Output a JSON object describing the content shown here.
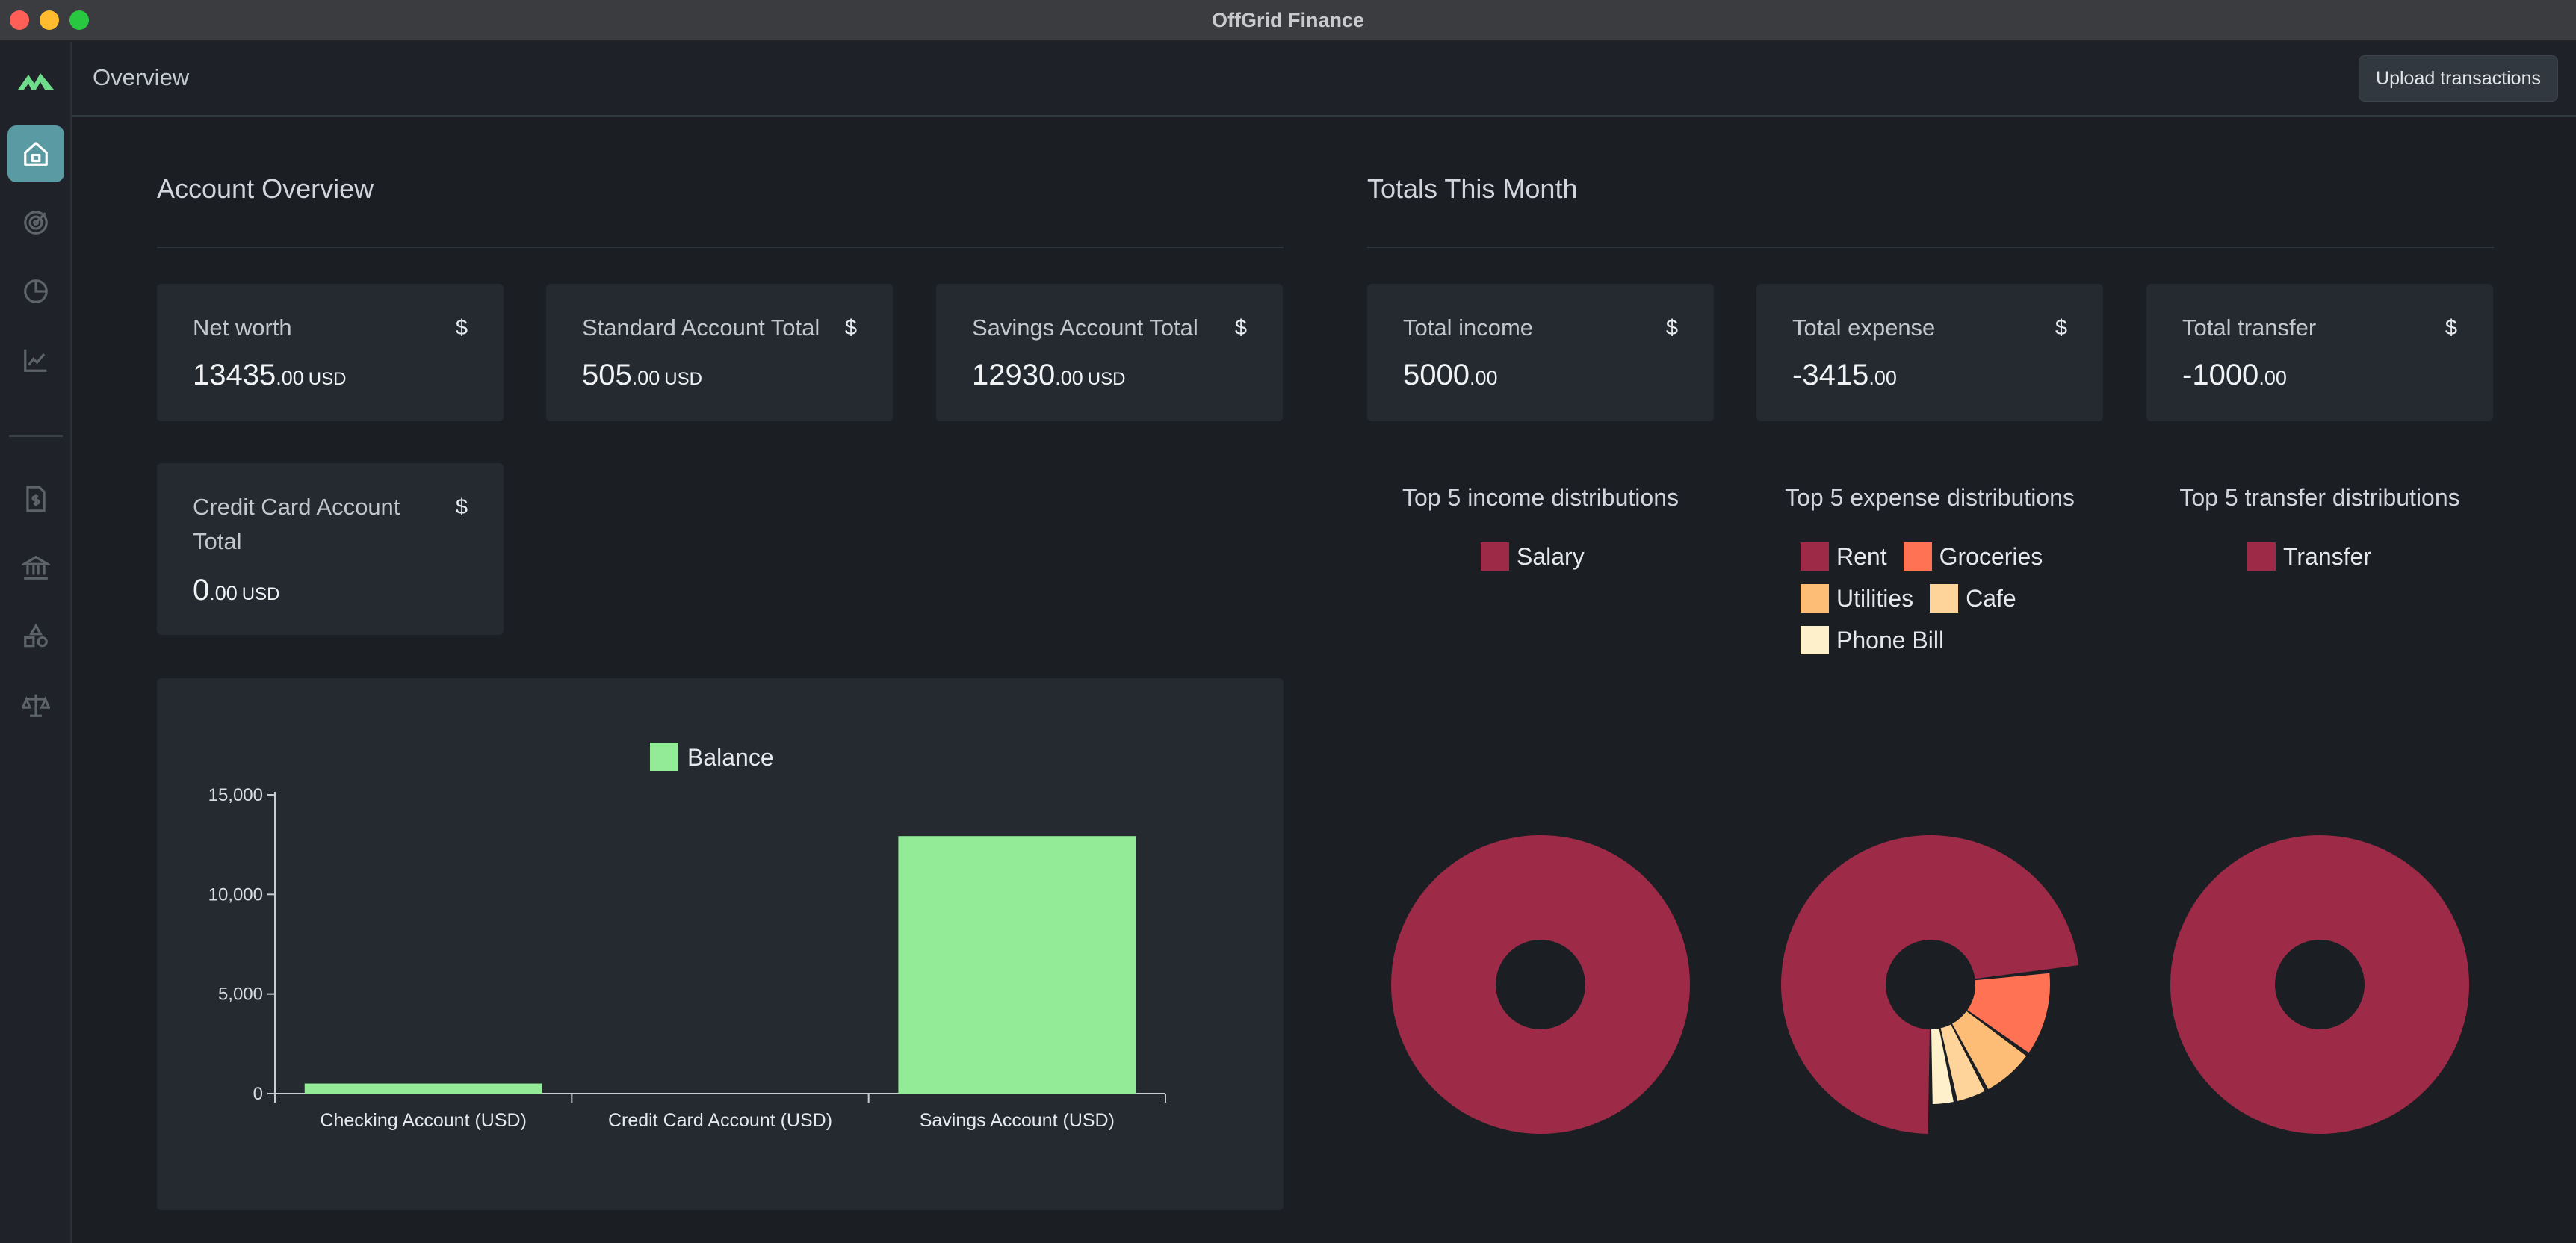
{
  "window": {
    "title": "OffGrid Finance"
  },
  "sidebar": {
    "items": [
      {
        "icon": "home-icon",
        "active": true
      },
      {
        "icon": "target-icon",
        "active": false
      },
      {
        "icon": "pie-chart-icon",
        "active": false
      },
      {
        "icon": "line-chart-icon",
        "active": false
      },
      {
        "icon": "invoice-dollar-icon",
        "active": false
      },
      {
        "icon": "bank-icon",
        "active": false
      },
      {
        "icon": "shapes-icon",
        "active": false
      },
      {
        "icon": "scale-icon",
        "active": false
      }
    ]
  },
  "header": {
    "title": "Overview",
    "upload_label": "Upload transactions"
  },
  "account_overview": {
    "title": "Account Overview",
    "cards": [
      {
        "label": "Net worth",
        "symbol": "$",
        "whole": "13435",
        "cents": ".00",
        "unit": "USD"
      },
      {
        "label": "Standard Account Total",
        "symbol": "$",
        "whole": "505",
        "cents": ".00",
        "unit": "USD"
      },
      {
        "label": "Savings Account Total",
        "symbol": "$",
        "whole": "12930",
        "cents": ".00",
        "unit": "USD"
      },
      {
        "label": "Credit Card Account Total",
        "symbol": "$",
        "whole": "0",
        "cents": ".00",
        "unit": "USD"
      }
    ]
  },
  "totals": {
    "title": "Totals This Month",
    "cards": [
      {
        "label": "Total income",
        "symbol": "$",
        "whole": "5000",
        "cents": ".00"
      },
      {
        "label": "Total expense",
        "symbol": "$",
        "whole": "-3415",
        "cents": ".00"
      },
      {
        "label": "Total transfer",
        "symbol": "$",
        "whole": "-1000",
        "cents": ".00"
      }
    ]
  },
  "chart_data": [
    {
      "type": "bar",
      "categories": [
        "Checking Account (USD)",
        "Credit Card Account (USD)",
        "Savings Account (USD)"
      ],
      "series": [
        {
          "name": "Balance",
          "values": [
            505,
            0,
            12930
          ],
          "color": "#93ea97"
        }
      ],
      "yticks": [
        0,
        5000,
        10000,
        15000
      ],
      "ytick_labels": [
        "0",
        "5,000",
        "10,000",
        "15,000"
      ],
      "ylim": [
        0,
        15000
      ],
      "legend": "top"
    },
    {
      "type": "pie",
      "title": "Top 5 income distributions",
      "slices": [
        {
          "label": "Salary",
          "value": 5000,
          "color": "#9d2a47"
        }
      ]
    },
    {
      "type": "pie",
      "title": "Top 5 expense distributions",
      "slices": [
        {
          "label": "Rent",
          "value": 2500,
          "color": "#9d2a47"
        },
        {
          "label": "Groceries",
          "value": 400,
          "color": "#ff7354"
        },
        {
          "label": "Utilities",
          "value": 250,
          "color": "#fdbd76"
        },
        {
          "label": "Cafe",
          "value": 150,
          "color": "#fed49a"
        },
        {
          "label": "Phone Bill",
          "value": 115,
          "color": "#fff0cc"
        }
      ]
    },
    {
      "type": "pie",
      "title": "Top 5 transfer distributions",
      "slices": [
        {
          "label": "Transfer",
          "value": 1000,
          "color": "#9d2a47"
        }
      ]
    }
  ]
}
